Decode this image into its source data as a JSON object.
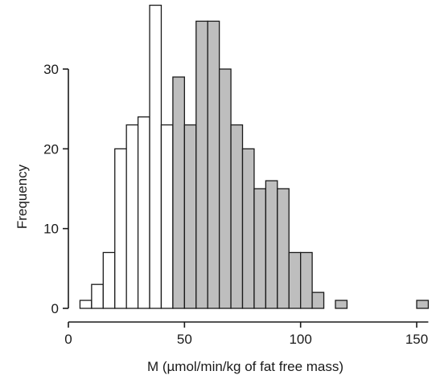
{
  "chart_data": {
    "type": "bar",
    "title": "",
    "xlabel": "M (µmol/min/kg of fat free mass)",
    "ylabel": "Frequency",
    "xlim": [
      0,
      155
    ],
    "ylim": [
      0,
      38
    ],
    "xticks": [
      0,
      50,
      100,
      150
    ],
    "yticks": [
      0,
      10,
      20,
      30
    ],
    "grid": false,
    "bin_width": 5,
    "colors": {
      "group_low": "#ffffff",
      "group_high": "#bebebe",
      "outline": "#1a1a1a"
    },
    "bins": [
      {
        "start": 5,
        "value": 1,
        "group": "low"
      },
      {
        "start": 10,
        "value": 3,
        "group": "low"
      },
      {
        "start": 15,
        "value": 7,
        "group": "low"
      },
      {
        "start": 20,
        "value": 20,
        "group": "low"
      },
      {
        "start": 25,
        "value": 23,
        "group": "low"
      },
      {
        "start": 30,
        "value": 24,
        "group": "low"
      },
      {
        "start": 35,
        "value": 38,
        "group": "low"
      },
      {
        "start": 40,
        "value": 23,
        "group": "low"
      },
      {
        "start": 45,
        "value": 29,
        "group": "high"
      },
      {
        "start": 50,
        "value": 23,
        "group": "high"
      },
      {
        "start": 55,
        "value": 36,
        "group": "high"
      },
      {
        "start": 60,
        "value": 36,
        "group": "high"
      },
      {
        "start": 65,
        "value": 30,
        "group": "high"
      },
      {
        "start": 70,
        "value": 23,
        "group": "high"
      },
      {
        "start": 75,
        "value": 20,
        "group": "high"
      },
      {
        "start": 80,
        "value": 15,
        "group": "high"
      },
      {
        "start": 85,
        "value": 16,
        "group": "high"
      },
      {
        "start": 90,
        "value": 15,
        "group": "high"
      },
      {
        "start": 95,
        "value": 7,
        "group": "high"
      },
      {
        "start": 100,
        "value": 7,
        "group": "high"
      },
      {
        "start": 105,
        "value": 2,
        "group": "high"
      },
      {
        "start": 115,
        "value": 1,
        "group": "high"
      },
      {
        "start": 150,
        "value": 1,
        "group": "high"
      }
    ]
  }
}
